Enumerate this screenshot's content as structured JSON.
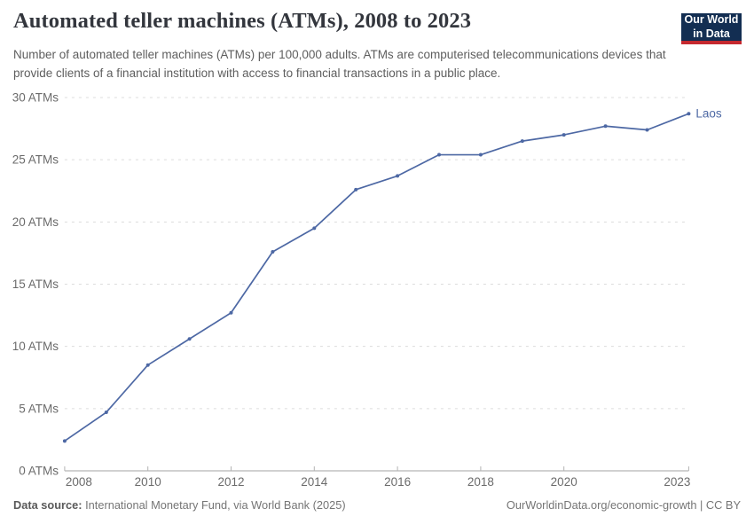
{
  "header": {
    "title": "Automated teller machines (ATMs), 2008 to 2023",
    "subtitle": "Number of automated teller machines (ATMs) per 100,000 adults. ATMs are computerised telecommunications devices that provide clients of a financial institution with access to financial transactions in a public place.",
    "logo": {
      "line1": "Our World",
      "line2": "in Data",
      "bg_color": "#132E52",
      "bar_color": "#C5292F"
    }
  },
  "chart_data": {
    "type": "line",
    "title": "Automated teller machines (ATMs), 2008 to 2023",
    "xlabel": "",
    "ylabel": "",
    "x": [
      2008,
      2009,
      2010,
      2011,
      2012,
      2013,
      2014,
      2015,
      2016,
      2017,
      2018,
      2019,
      2020,
      2021,
      2022,
      2023
    ],
    "series": [
      {
        "name": "Laos",
        "color": "#4D68A4",
        "values": [
          2.4,
          4.7,
          8.5,
          10.6,
          12.7,
          17.6,
          19.5,
          22.6,
          23.7,
          25.4,
          25.4,
          26.5,
          27.0,
          27.7,
          27.4,
          28.7
        ]
      }
    ],
    "xlim": [
      2008,
      2023
    ],
    "ylim": [
      0,
      30
    ],
    "y_ticks": [
      0,
      5,
      10,
      15,
      20,
      25,
      30
    ],
    "y_tick_labels": [
      "0 ATMs",
      "5 ATMs",
      "10 ATMs",
      "15 ATMs",
      "20 ATMs",
      "25 ATMs",
      "30 ATMs"
    ],
    "x_ticks": [
      2008,
      2010,
      2012,
      2014,
      2016,
      2018,
      2020,
      2023
    ],
    "x_tick_labels": [
      "2008",
      "2010",
      "2012",
      "2014",
      "2016",
      "2018",
      "2020",
      "2023"
    ],
    "grid": "horizontal-dashed",
    "legend_position": "end-of-line-label",
    "colors": {
      "gridline": "#dcdcdc",
      "axis_line": "#a3a3a3",
      "tick_mark": "#b3b3b3",
      "tick_label": "#6b6b6b"
    }
  },
  "footer": {
    "source_label": "Data source:",
    "source_text": "International Monetary Fund, via World Bank (2025)",
    "attribution": "OurWorldinData.org/economic-growth | CC BY"
  }
}
